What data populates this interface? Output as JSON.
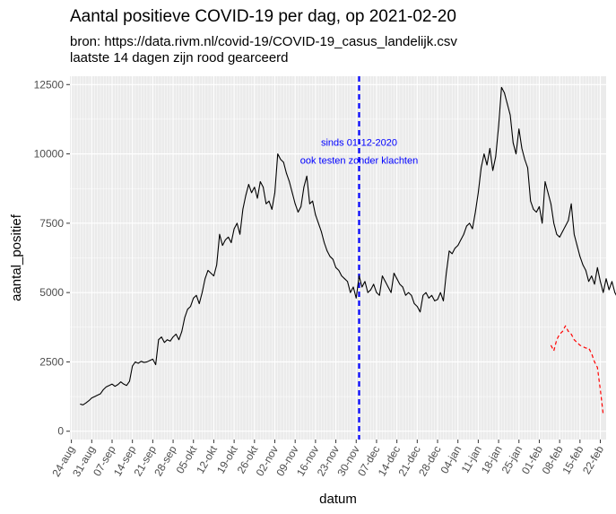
{
  "chart_data": {
    "type": "line",
    "title": "Aantal positieve COVID-19 per dag, op 2021-02-20",
    "subtitle_lines": [
      "bron: https://data.rivm.nl/covid-19/COVID-19_casus_landelijk.csv",
      "laatste 14 dagen zijn rood gearceerd"
    ],
    "xlabel": "datum",
    "ylabel": "aantal_positief",
    "x_start_date": "2020-08-24",
    "x_end_date": "2021-02-22",
    "ylim": [
      -300,
      12800
    ],
    "yticks": [
      0,
      2500,
      5000,
      7500,
      10000,
      12500
    ],
    "xticks": [
      "24-aug",
      "31-aug",
      "07-sep",
      "14-sep",
      "21-sep",
      "28-sep",
      "05-okt",
      "12-okt",
      "19-okt",
      "26-okt",
      "02-nov",
      "09-nov",
      "16-nov",
      "23-nov",
      "30-nov",
      "07-dec",
      "14-dec",
      "21-dec",
      "28-dec",
      "04-jan",
      "11-jan",
      "18-jan",
      "25-jan",
      "01-feb",
      "08-feb",
      "15-feb",
      "22-feb"
    ],
    "grid": true,
    "background": "#ebebeb",
    "series": [
      {
        "style": "solid",
        "color": "#000000",
        "start_date": "2020-08-27",
        "values": [
          980,
          950,
          1020,
          1100,
          1200,
          1250,
          1300,
          1350,
          1500,
          1600,
          1650,
          1700,
          1620,
          1680,
          1780,
          1700,
          1650,
          1800,
          2350,
          2500,
          2450,
          2520,
          2480,
          2500,
          2550,
          2600,
          2400,
          3300,
          3400,
          3200,
          3300,
          3250,
          3400,
          3500,
          3300,
          3600,
          4100,
          4400,
          4500,
          4800,
          4900,
          4600,
          5000,
          5500,
          5800,
          5700,
          5600,
          6000,
          7100,
          6700,
          6900,
          7000,
          6800,
          7300,
          7500,
          7100,
          8000,
          8500,
          8900,
          8600,
          8800,
          8400,
          9000,
          8800,
          8200,
          8300,
          8000,
          8600,
          10000,
          9800,
          9700,
          9300,
          9000,
          8600,
          8200,
          7900,
          8100,
          8800,
          9200,
          8200,
          8300,
          7800,
          7500,
          7200,
          6800,
          6500,
          6300,
          6200,
          5900,
          5800,
          5600,
          5500,
          5400,
          5000,
          5200,
          4800,
          5600,
          5200,
          5400,
          5000,
          5100,
          5300,
          5000,
          4900,
          5600,
          5400,
          5200,
          5000,
          5700,
          5500,
          5300,
          5200,
          4900,
          5000,
          4900,
          4600,
          4500,
          4300,
          4900,
          5000,
          4800,
          4900,
          4700,
          4750,
          5000,
          4700,
          5700,
          6500,
          6400,
          6600,
          6700,
          6900,
          7100,
          7400,
          7500,
          7300,
          7900,
          8600,
          9500,
          10000,
          9600,
          10200,
          9400,
          9900,
          11000,
          12400,
          12200,
          11800,
          11400,
          10400,
          10000,
          10900,
          10200,
          9800,
          9500,
          8300,
          8000,
          7900,
          8100,
          7500,
          9000,
          8600,
          8200,
          7500,
          7100,
          7000,
          7200,
          7400,
          7600,
          8200,
          7100,
          6700,
          6300,
          6000,
          5800,
          5400,
          5600,
          5300,
          5900,
          5400,
          5000,
          5500,
          5100,
          5400,
          5000,
          4800,
          5500,
          5200,
          4600,
          4500,
          4400,
          4800,
          4300,
          4200,
          4100,
          4500,
          4200,
          4300,
          4000,
          3800,
          3600,
          3900,
          3700,
          3500,
          3500,
          3400,
          4000,
          3900,
          4000,
          3800,
          3900,
          3700,
          3600,
          3700,
          3400,
          3300,
          3100
        ]
      },
      {
        "style": "dashed",
        "color": "#ff0000",
        "start_date": "2021-02-05",
        "values": [
          3100,
          2900,
          3300,
          3500,
          3600,
          3800,
          3600,
          3500,
          3300,
          3200,
          3100,
          3050,
          3000,
          3000,
          2800,
          2500,
          2300,
          1500,
          600
        ]
      }
    ],
    "reference_line": {
      "date": "2020-12-01",
      "color": "#0000ff",
      "style": "dashed",
      "annotation_lines": [
        "sinds 01-12-2020",
        "ook testen zonder klachten"
      ]
    }
  }
}
